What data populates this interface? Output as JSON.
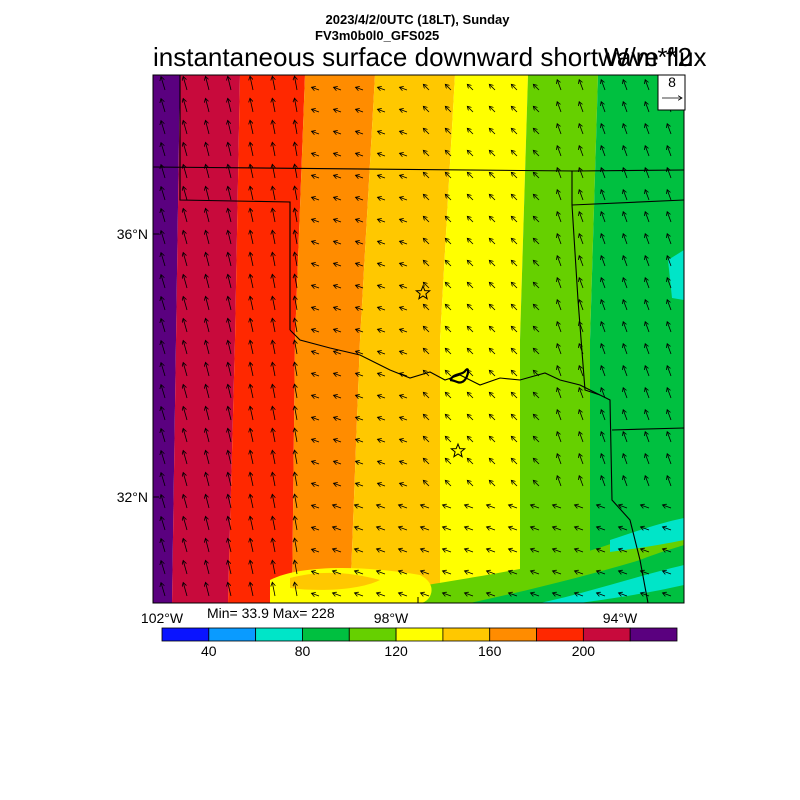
{
  "header": {
    "datetime": "2023/4/2/0UTC (18LT), Sunday",
    "model": "FV3m0b0l0_GFS025",
    "title": "instantaneous surface downward shortwave flux",
    "units": "W/m**2"
  },
  "vector_reference": {
    "value": "8"
  },
  "stats": {
    "text": "Min= 33.9 Max= 228"
  },
  "axes": {
    "lat_labels": [
      "36°N",
      "32°N"
    ],
    "lon_labels": [
      "102°W",
      "98°W",
      "94°W"
    ]
  },
  "colorbar": {
    "colors": [
      "#0a14ff",
      "#0a9bff",
      "#00e5c8",
      "#00c040",
      "#66d000",
      "#ffff00",
      "#ffc800",
      "#ff8c00",
      "#ff2800",
      "#c80a3c",
      "#5a007f"
    ],
    "tick_labels": [
      "40",
      "80",
      "120",
      "160",
      "200"
    ]
  },
  "field": {
    "description_bands": "west-to-east decreasing",
    "band_colors_west_to_east": [
      "#5a007f",
      "#c80a3c",
      "#ff2800",
      "#ff8c00",
      "#ffc800",
      "#ffff00",
      "#66d000",
      "#00c040"
    ]
  }
}
